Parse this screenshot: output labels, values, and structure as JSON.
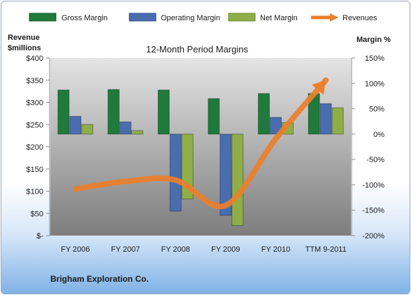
{
  "chart_data": {
    "type": "bar",
    "title": "12-Month Period Margins",
    "left_axis_title_line1": "Revenue",
    "left_axis_title_line2": "$millions",
    "right_axis_title": "Margin %",
    "company": "Brigham Exploration Co.",
    "categories": [
      "FY 2006",
      "FY 2007",
      "FY 2008",
      "FY 2009",
      "FY 2010",
      "TTM 9-2011"
    ],
    "left_axis": {
      "min": 0,
      "max": 400,
      "step": 50,
      "ticks": [
        "$-",
        "$50",
        "$100",
        "$150",
        "$200",
        "$250",
        "$300",
        "$350",
        "$400"
      ]
    },
    "right_axis": {
      "min": -200,
      "max": 150,
      "step": 50,
      "ticks": [
        "-200%",
        "-150%",
        "-100%",
        "-50%",
        "0%",
        "50%",
        "100%",
        "150%"
      ]
    },
    "series": [
      {
        "name": "Gross Margin",
        "kind": "bar",
        "axis": "right",
        "color": "#1f7a3c",
        "values": [
          87,
          88,
          87,
          70,
          80,
          80
        ]
      },
      {
        "name": "Operating Margin",
        "kind": "bar",
        "axis": "right",
        "color": "#4a6db0",
        "values": [
          35,
          24,
          -152,
          -160,
          33,
          60
        ]
      },
      {
        "name": "Net Margin",
        "kind": "bar",
        "axis": "right",
        "color": "#8fae4a",
        "values": [
          19,
          7,
          -128,
          -180,
          23,
          52
        ]
      },
      {
        "name": "Revenues",
        "kind": "line",
        "axis": "left",
        "color": "#ec7f2c",
        "values": [
          105,
          122,
          125,
          68,
          218,
          350
        ]
      }
    ],
    "legend_position": "top",
    "grid": false
  }
}
